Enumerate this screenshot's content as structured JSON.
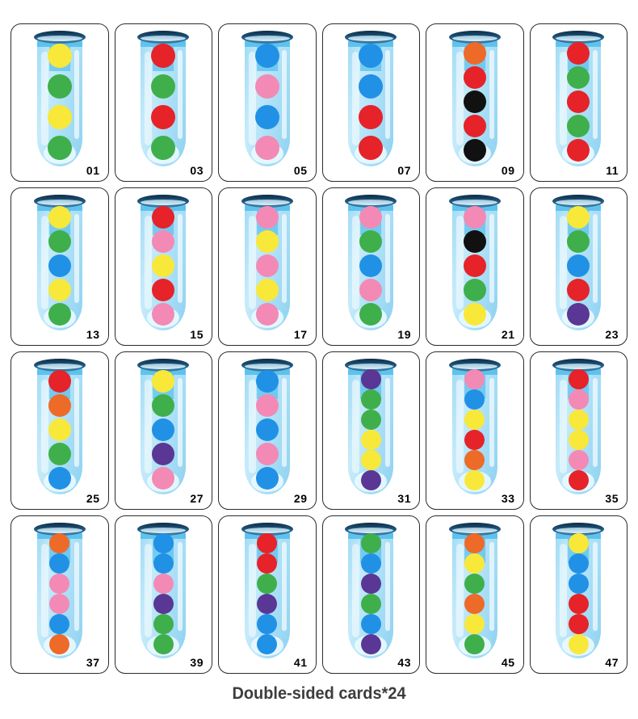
{
  "caption": "Double-sided cards*24",
  "palette": {
    "yellow": "#f8e839",
    "green": "#3faf4b",
    "blue": "#2191e6",
    "red": "#e52329",
    "pink": "#f28ab5",
    "orange": "#ed6a28",
    "black": "#111111",
    "purple": "#5a3794"
  },
  "cards": [
    {
      "number": "01",
      "balls": [
        "yellow",
        "green",
        "yellow",
        "green"
      ]
    },
    {
      "number": "03",
      "balls": [
        "red",
        "green",
        "red",
        "green"
      ]
    },
    {
      "number": "05",
      "balls": [
        "blue",
        "pink",
        "blue",
        "pink"
      ]
    },
    {
      "number": "07",
      "balls": [
        "blue",
        "blue",
        "red",
        "red"
      ]
    },
    {
      "number": "09",
      "balls": [
        "orange",
        "red",
        "black",
        "red",
        "black"
      ]
    },
    {
      "number": "11",
      "balls": [
        "red",
        "green",
        "red",
        "green",
        "red"
      ]
    },
    {
      "number": "13",
      "balls": [
        "yellow",
        "green",
        "blue",
        "yellow",
        "green"
      ]
    },
    {
      "number": "15",
      "balls": [
        "red",
        "pink",
        "yellow",
        "red",
        "pink"
      ]
    },
    {
      "number": "17",
      "balls": [
        "pink",
        "yellow",
        "pink",
        "yellow",
        "pink"
      ]
    },
    {
      "number": "19",
      "balls": [
        "pink",
        "green",
        "blue",
        "pink",
        "green"
      ]
    },
    {
      "number": "21",
      "balls": [
        "pink",
        "black",
        "red",
        "green",
        "yellow"
      ]
    },
    {
      "number": "23",
      "balls": [
        "yellow",
        "green",
        "blue",
        "red",
        "purple"
      ]
    },
    {
      "number": "25",
      "balls": [
        "red",
        "orange",
        "yellow",
        "green",
        "blue"
      ]
    },
    {
      "number": "27",
      "balls": [
        "yellow",
        "green",
        "blue",
        "purple",
        "pink"
      ]
    },
    {
      "number": "29",
      "balls": [
        "blue",
        "pink",
        "blue",
        "pink",
        "blue"
      ]
    },
    {
      "number": "31",
      "balls": [
        "purple",
        "green",
        "green",
        "yellow",
        "yellow",
        "purple"
      ]
    },
    {
      "number": "33",
      "balls": [
        "pink",
        "blue",
        "yellow",
        "red",
        "orange",
        "yellow"
      ]
    },
    {
      "number": "35",
      "balls": [
        "red",
        "pink",
        "yellow",
        "yellow",
        "pink",
        "red"
      ]
    },
    {
      "number": "37",
      "balls": [
        "orange",
        "blue",
        "pink",
        "pink",
        "blue",
        "orange"
      ]
    },
    {
      "number": "39",
      "balls": [
        "blue",
        "blue",
        "pink",
        "purple",
        "green",
        "green"
      ]
    },
    {
      "number": "41",
      "balls": [
        "red",
        "red",
        "green",
        "purple",
        "blue",
        "blue"
      ]
    },
    {
      "number": "43",
      "balls": [
        "green",
        "blue",
        "purple",
        "green",
        "blue",
        "purple"
      ]
    },
    {
      "number": "45",
      "balls": [
        "orange",
        "yellow",
        "green",
        "orange",
        "yellow",
        "green"
      ]
    },
    {
      "number": "47",
      "balls": [
        "yellow",
        "blue",
        "blue",
        "red",
        "red",
        "yellow"
      ]
    }
  ]
}
